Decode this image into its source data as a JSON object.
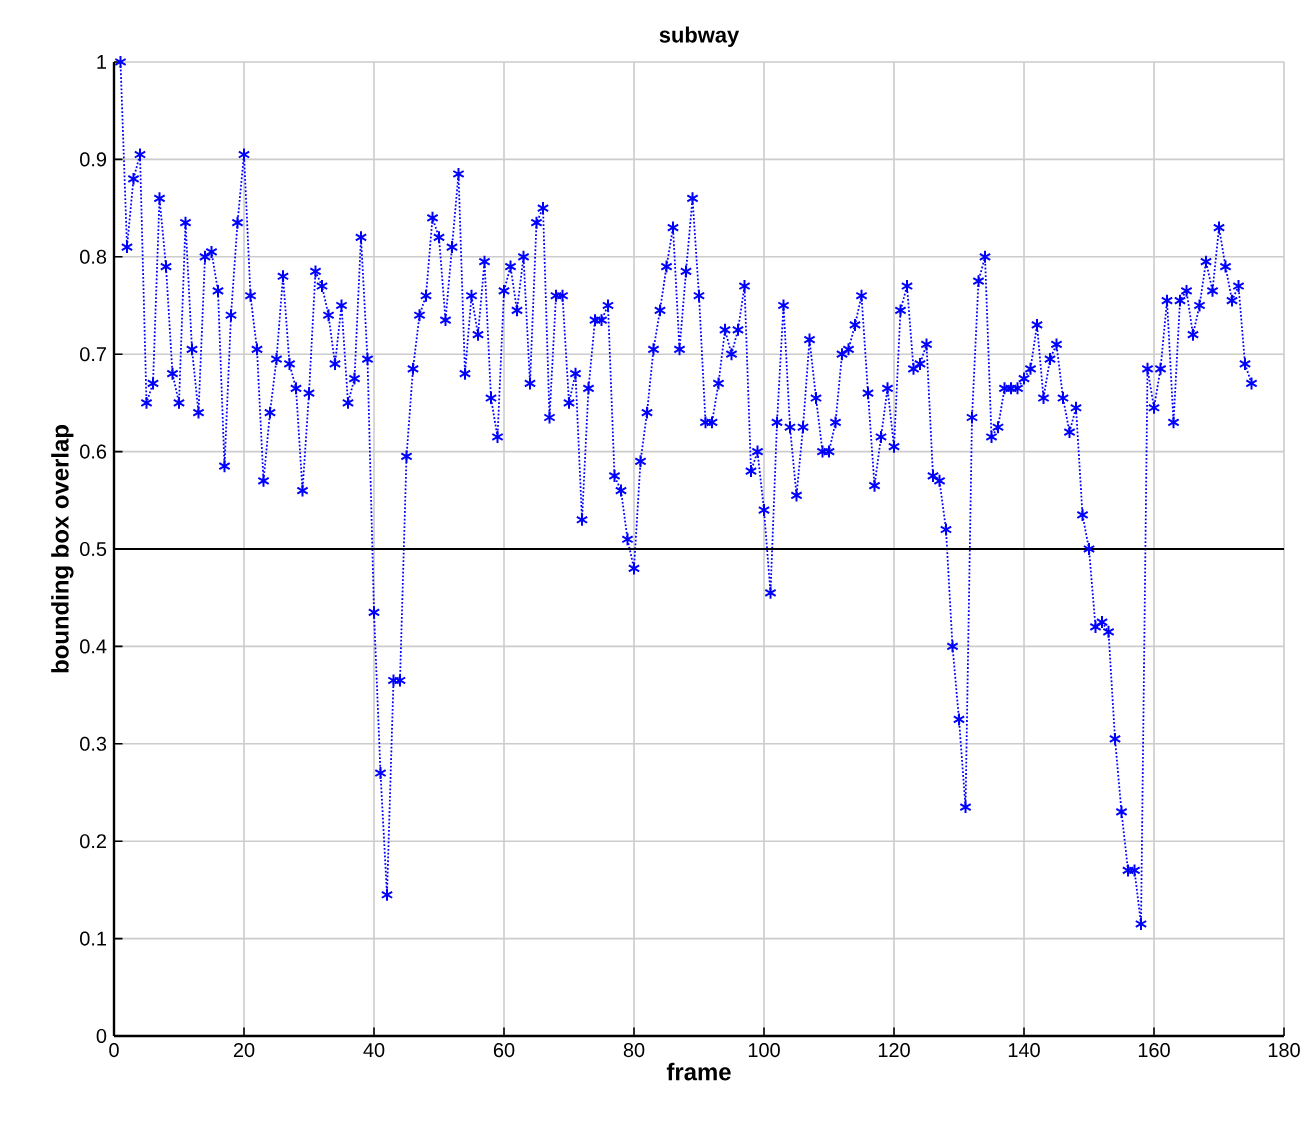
{
  "chart_data": {
    "type": "line",
    "title": "subway",
    "xlabel": "frame",
    "ylabel": "bounding box overlap",
    "x": [
      1,
      2,
      3,
      4,
      5,
      6,
      7,
      8,
      9,
      10,
      11,
      12,
      13,
      14,
      15,
      16,
      17,
      18,
      19,
      20,
      21,
      22,
      23,
      24,
      25,
      26,
      27,
      28,
      29,
      30,
      31,
      32,
      33,
      34,
      35,
      36,
      37,
      38,
      39,
      40,
      41,
      42,
      43,
      44,
      45,
      46,
      47,
      48,
      49,
      50,
      51,
      52,
      53,
      54,
      55,
      56,
      57,
      58,
      59,
      60,
      61,
      62,
      63,
      64,
      65,
      66,
      67,
      68,
      69,
      70,
      71,
      72,
      73,
      74,
      75,
      76,
      77,
      78,
      79,
      80,
      81,
      82,
      83,
      84,
      85,
      86,
      87,
      88,
      89,
      90,
      91,
      92,
      93,
      94,
      95,
      96,
      97,
      98,
      99,
      100,
      101,
      102,
      103,
      104,
      105,
      106,
      107,
      108,
      109,
      110,
      111,
      112,
      113,
      114,
      115,
      116,
      117,
      118,
      119,
      120,
      121,
      122,
      123,
      124,
      125,
      126,
      127,
      128,
      129,
      130,
      131,
      132,
      133,
      134,
      135,
      136,
      137,
      138,
      139,
      140,
      141,
      142,
      143,
      144,
      145,
      146,
      147,
      148,
      149,
      150,
      151,
      152,
      153,
      154,
      155,
      156,
      157,
      158,
      159,
      160,
      161,
      162,
      163,
      164,
      165,
      166,
      167,
      168,
      169,
      170,
      171,
      172,
      173,
      174,
      175
    ],
    "series": [
      {
        "color": "#0000ff",
        "values": [
          1.0,
          0.81,
          0.88,
          0.905,
          0.65,
          0.67,
          0.86,
          0.79,
          0.68,
          0.65,
          0.835,
          0.705,
          0.64,
          0.8,
          0.805,
          0.765,
          0.585,
          0.74,
          0.835,
          0.905,
          0.76,
          0.705,
          0.57,
          0.64,
          0.695,
          0.78,
          0.69,
          0.665,
          0.56,
          0.66,
          0.785,
          0.77,
          0.74,
          0.69,
          0.75,
          0.65,
          0.675,
          0.82,
          0.695,
          0.435,
          0.27,
          0.145,
          0.365,
          0.365,
          0.595,
          0.685,
          0.74,
          0.76,
          0.84,
          0.82,
          0.735,
          0.81,
          0.885,
          0.68,
          0.76,
          0.72,
          0.795,
          0.655,
          0.615,
          0.765,
          0.79,
          0.745,
          0.8,
          0.67,
          0.835,
          0.85,
          0.635,
          0.76,
          0.76,
          0.65,
          0.68,
          0.53,
          0.665,
          0.735,
          0.735,
          0.75,
          0.575,
          0.56,
          0.51,
          0.48,
          0.59,
          0.64,
          0.705,
          0.745,
          0.79,
          0.83,
          0.705,
          0.785,
          0.86,
          0.76,
          0.63,
          0.63,
          0.67,
          0.725,
          0.7,
          0.725,
          0.77,
          0.58,
          0.6,
          0.54,
          0.455,
          0.63,
          0.75,
          0.625,
          0.555,
          0.625,
          0.715,
          0.655,
          0.6,
          0.6,
          0.63,
          0.7,
          0.705,
          0.73,
          0.76,
          0.66,
          0.565,
          0.615,
          0.665,
          0.605,
          0.745,
          0.77,
          0.685,
          0.69,
          0.71,
          0.575,
          0.57,
          0.52,
          0.4,
          0.325,
          0.235,
          0.635,
          0.775,
          0.8,
          0.615,
          0.625,
          0.665,
          0.665,
          0.665,
          0.675,
          0.685,
          0.73,
          0.655,
          0.695,
          0.71,
          0.655,
          0.62,
          0.645,
          0.535,
          0.5,
          0.42,
          0.425,
          0.415,
          0.305,
          0.23,
          0.17,
          0.17,
          0.115,
          0.685,
          0.645,
          0.685,
          0.755,
          0.63,
          0.755,
          0.765,
          0.72,
          0.75,
          0.795,
          0.765,
          0.83,
          0.79,
          0.755,
          0.77,
          0.69,
          0.67
        ]
      }
    ],
    "xlim": [
      0,
      180
    ],
    "xticks": [
      0,
      20,
      40,
      60,
      80,
      100,
      120,
      140,
      160,
      180
    ],
    "ylim": [
      0,
      1
    ],
    "yticks": [
      0,
      0.1,
      0.2,
      0.3,
      0.4,
      0.5,
      0.6,
      0.7,
      0.8,
      0.9,
      1
    ],
    "ref_lines": [
      {
        "axis": "y",
        "value": 0.5,
        "color": "#000000"
      }
    ],
    "grid": true,
    "marker": "cross",
    "line_style": "dotted"
  }
}
